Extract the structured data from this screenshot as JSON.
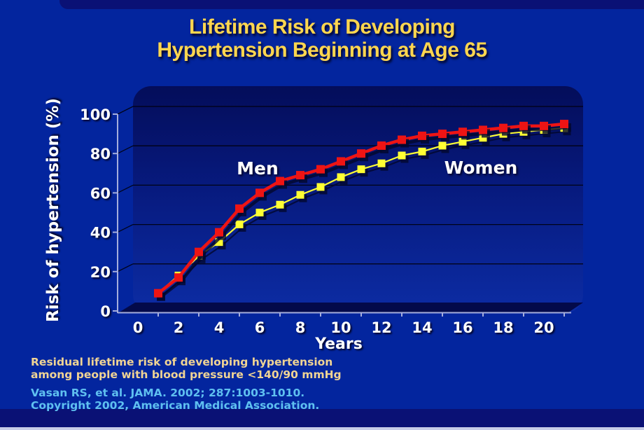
{
  "slide": {
    "title_line1": "Lifetime Risk of Developing",
    "title_line2": "Hypertension Beginning at Age 65",
    "caption_line1": "Residual lifetime risk of developing hypertension",
    "caption_line2": "among people with blood pressure <140/90 mmHg",
    "citation_line1": "Vasan RS, et al. JAMA. 2002; 287:1003-1010.",
    "citation_line2": "Copyright 2002, American Medical Association.",
    "colors": {
      "slide_background": "#03259E",
      "accent_bars": "#0A1175",
      "bottom_edge_strip": "#C7CCE8",
      "title_text": "#FFD64F",
      "caption_text": "#F0D494",
      "citation_text": "#5FC0F0",
      "axis_text": "#FFFFFF",
      "men_series": "#EE1414",
      "women_series": "#FFFF33",
      "plot_panel_top": "#040D5A",
      "plot_panel_bottom": "#0C2CA4"
    }
  },
  "chart_data": {
    "type": "line",
    "title": "",
    "xlabel": "Years",
    "ylabel": "Risk of hypertension (%)",
    "x": [
      1,
      2,
      3,
      4,
      5,
      6,
      7,
      8,
      9,
      10,
      11,
      12,
      13,
      14,
      15,
      16,
      17,
      18,
      19,
      20,
      21
    ],
    "series": [
      {
        "name": "Men",
        "color": "#EE1414",
        "values": [
          9,
          17,
          30,
          40,
          52,
          60,
          66,
          69,
          72,
          76,
          80,
          84,
          87,
          89,
          90,
          91,
          92,
          93,
          94,
          94,
          95
        ]
      },
      {
        "name": "Women",
        "color": "#FFFF33",
        "values": [
          9,
          18,
          28,
          35,
          44,
          50,
          54,
          59,
          63,
          68,
          72,
          75,
          79,
          81,
          84,
          86,
          88,
          90,
          91,
          92,
          93
        ]
      }
    ],
    "xticks": [
      0,
      2,
      4,
      6,
      8,
      10,
      12,
      14,
      16,
      18,
      20
    ],
    "yticks": [
      0,
      20,
      40,
      60,
      80,
      100
    ],
    "xlim": [
      0,
      21.5
    ],
    "ylim": [
      0,
      100
    ],
    "grid": "horizontal",
    "legend_position": "inline-labels"
  }
}
